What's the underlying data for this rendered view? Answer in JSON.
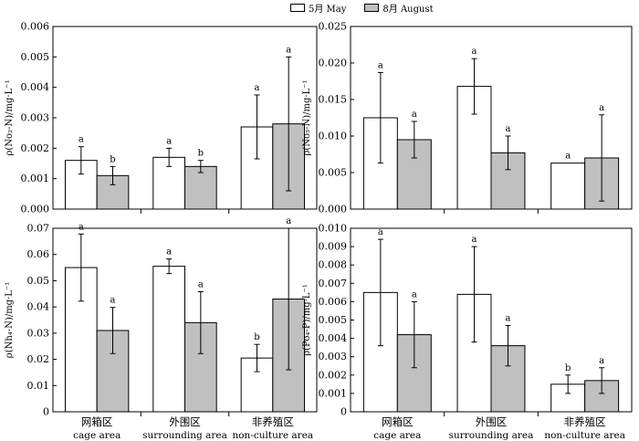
{
  "legend": {
    "may_label": "5月 May",
    "aug_label": "8月 August",
    "may_color": "#ffffff",
    "aug_color": "#c0c0c0"
  },
  "x_groups": [
    {
      "zh": "网箱区",
      "en": "cage area"
    },
    {
      "zh": "外围区",
      "en": "surrounding area"
    },
    {
      "zh": "非养殖区",
      "en": "non-culture area"
    }
  ],
  "chart_data": [
    {
      "type": "bar",
      "ylabel": "ρ(No₂-N)/mg·L⁻¹",
      "ylim": [
        0,
        0.006
      ],
      "yticks": [
        "0.000",
        "0.001",
        "0.002",
        "0.003",
        "0.004",
        "0.005",
        "0.006"
      ],
      "categories": [
        "cage area",
        "surrounding area",
        "non-culture area"
      ],
      "series": [
        {
          "name": "5月 May",
          "values": [
            0.0016,
            0.0017,
            0.0027
          ],
          "errors": [
            0.00045,
            0.0003,
            0.00105
          ],
          "letters": [
            "a",
            "a",
            "a"
          ]
        },
        {
          "name": "8月 August",
          "values": [
            0.0011,
            0.0014,
            0.0028
          ],
          "errors": [
            0.0003,
            0.0002,
            0.0022
          ],
          "letters": [
            "b",
            "b",
            "a"
          ]
        }
      ]
    },
    {
      "type": "bar",
      "ylabel": "ρ(No₃-N)/mg·L⁻¹",
      "ylim": [
        0,
        0.025
      ],
      "yticks": [
        "0.000",
        "0.005",
        "0.010",
        "0.015",
        "0.020",
        "0.025"
      ],
      "categories": [
        "cage area",
        "surrounding area",
        "non-culture area"
      ],
      "series": [
        {
          "name": "5月 May",
          "values": [
            0.0125,
            0.0168,
            0.0063
          ],
          "errors": [
            0.0062,
            0.0038,
            0
          ],
          "letters": [
            "a",
            "a",
            "a"
          ]
        },
        {
          "name": "8月 August",
          "values": [
            0.0095,
            0.0077,
            0.007
          ],
          "errors": [
            0.0025,
            0.0023,
            0.0059
          ],
          "letters": [
            "a",
            "a",
            "a"
          ]
        }
      ]
    },
    {
      "type": "bar",
      "ylabel": "ρ(Nh₄-N)/mg·L⁻¹",
      "ylim": [
        0,
        0.07
      ],
      "yticks": [
        "0",
        "0.01",
        "0.02",
        "0.03",
        "0.04",
        "0.05",
        "0.06",
        "0.07"
      ],
      "categories": [
        "cage area",
        "surrounding area",
        "non-culture area"
      ],
      "series": [
        {
          "name": "5月 May",
          "values": [
            0.055,
            0.0555,
            0.0205
          ],
          "errors": [
            0.0128,
            0.0028,
            0.0052
          ],
          "letters": [
            "a",
            "a",
            "b"
          ]
        },
        {
          "name": "8月 August",
          "values": [
            0.031,
            0.034,
            0.043
          ],
          "errors": [
            0.0088,
            0.0118,
            0.027
          ],
          "letters": [
            "a",
            "a",
            "a"
          ]
        }
      ]
    },
    {
      "type": "bar",
      "ylabel": "ρ(Po₄-P)/mg·L⁻¹",
      "ylim": [
        0,
        0.01
      ],
      "yticks": [
        "0",
        "0.001",
        "0.002",
        "0.003",
        "0.004",
        "0.005",
        "0.006",
        "0.007",
        "0.008",
        "0.009",
        "0.010"
      ],
      "categories": [
        "cage area",
        "surrounding area",
        "non-culture area"
      ],
      "series": [
        {
          "name": "5月 May",
          "values": [
            0.0065,
            0.0064,
            0.0015
          ],
          "errors": [
            0.0029,
            0.0026,
            0.0005
          ],
          "letters": [
            "a",
            "a",
            "b"
          ]
        },
        {
          "name": "8月 August",
          "values": [
            0.0042,
            0.0036,
            0.0017
          ],
          "errors": [
            0.0018,
            0.0011,
            0.0007
          ],
          "letters": [
            "a",
            "a",
            "a"
          ]
        }
      ]
    }
  ]
}
